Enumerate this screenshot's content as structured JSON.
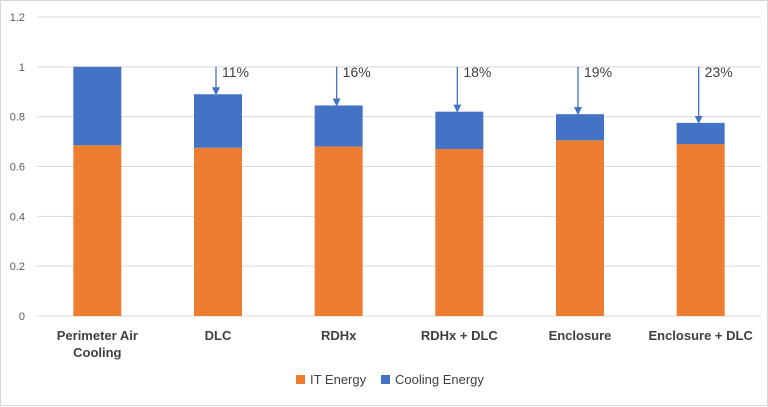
{
  "chart_data": {
    "type": "bar",
    "stacked": true,
    "categories": [
      "Perimeter Air Cooling",
      "DLC",
      "RDHx",
      "RDHx + DLC",
      "Enclosure",
      "Enclosure + DLC"
    ],
    "series": [
      {
        "name": "IT Energy",
        "color": "#ED7D31",
        "values": [
          0.685,
          0.675,
          0.68,
          0.67,
          0.705,
          0.69
        ]
      },
      {
        "name": "Cooling Energy",
        "color": "#4472C4",
        "values": [
          0.315,
          0.215,
          0.165,
          0.15,
          0.105,
          0.085
        ]
      }
    ],
    "annotations": [
      "",
      "11%",
      "16%",
      "18%",
      "19%",
      "23%"
    ],
    "ylim": [
      0,
      1.2
    ],
    "yticks": [
      "0",
      "0.2",
      "0.4",
      "0.6",
      "0.8",
      "1",
      "1.2"
    ],
    "grid": true,
    "legend_position": "bottom",
    "title": "",
    "xlabel": "",
    "ylabel": ""
  }
}
